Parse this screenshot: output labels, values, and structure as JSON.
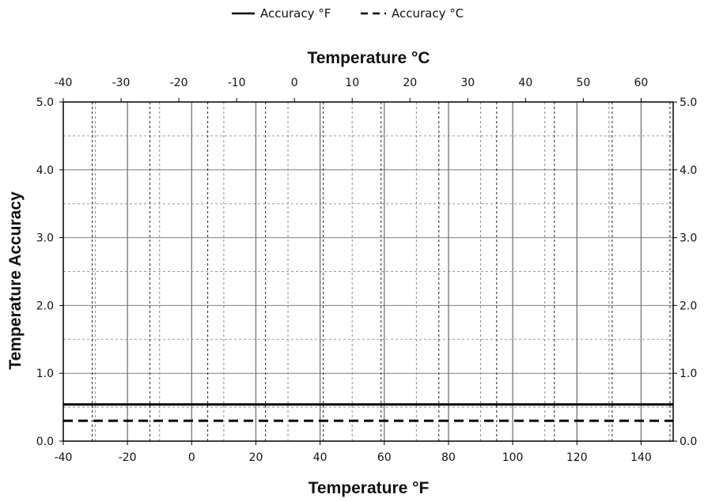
{
  "chart_data": {
    "type": "line",
    "x_axis_bottom": {
      "label": "Temperature °F",
      "range": [
        -40,
        150
      ],
      "ticks": [
        "-40",
        "-20",
        "0",
        "20",
        "40",
        "60",
        "80",
        "100",
        "120",
        "140"
      ],
      "tick_values": [
        -40,
        -20,
        0,
        20,
        40,
        60,
        80,
        100,
        120,
        140
      ]
    },
    "x_axis_top": {
      "label": "Temperature °C",
      "range": [
        -40,
        65.56
      ],
      "ticks": [
        "-40",
        "-30",
        "-20",
        "-10",
        "0",
        "10",
        "20",
        "30",
        "40",
        "50",
        "60"
      ],
      "tick_values": [
        -40,
        -30,
        -20,
        -10,
        0,
        10,
        20,
        30,
        40,
        50,
        60
      ]
    },
    "y_axis": {
      "label": "Temperature Accuracy",
      "range": [
        0,
        5
      ],
      "ticks": [
        "0.0",
        "1.0",
        "2.0",
        "3.0",
        "4.0",
        "5.0"
      ],
      "tick_values": [
        0,
        1,
        2,
        3,
        4,
        5
      ],
      "minor_step": 0.5,
      "mirrored_right": true
    },
    "grid": true,
    "legend_position": "top-center",
    "series": [
      {
        "name": "Accuracy °F",
        "style": "solid",
        "color": "#000000",
        "x": [
          -40,
          150
        ],
        "y": [
          0.54,
          0.54
        ]
      },
      {
        "name": "Accuracy °C",
        "style": "dashed",
        "color": "#000000",
        "x": [
          -40,
          150
        ],
        "y": [
          0.3,
          0.3
        ]
      }
    ]
  }
}
